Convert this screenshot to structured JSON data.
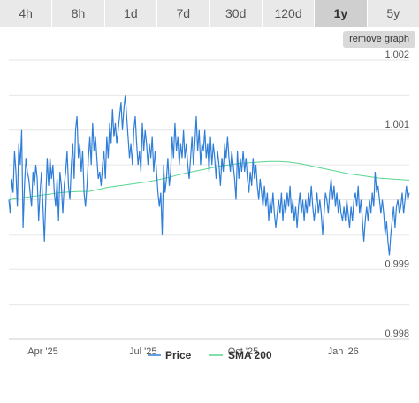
{
  "range_tabs": [
    {
      "label": "4h",
      "active": false
    },
    {
      "label": "8h",
      "active": false
    },
    {
      "label": "1d",
      "active": false
    },
    {
      "label": "7d",
      "active": false
    },
    {
      "label": "30d",
      "active": false
    },
    {
      "label": "120d",
      "active": false
    },
    {
      "label": "1y",
      "active": true
    },
    {
      "label": "5y",
      "active": false
    }
  ],
  "remove_graph_label": "remove graph",
  "colors": {
    "price_line": "#2f7ed8",
    "sma_line": "#58d68d",
    "grid": "#e6e6e6",
    "axis": "#cccccc",
    "tab_bg": "#e9e9e9",
    "tab_active_bg": "#cfcfcf"
  },
  "chart_data": {
    "type": "line",
    "x_tick_labels": [
      "Apr '25",
      "Jul '25",
      "Oct '25",
      "Jan '26"
    ],
    "y_tick_labels": [
      "0.998",
      "0.999",
      "1.001",
      "1.002"
    ],
    "ylim": [
      0.998,
      1.002
    ],
    "grid": true,
    "legend_position": "bottom-center",
    "series": [
      {
        "name": "Price",
        "values": [
          1.0,
          0.9998,
          1.0003,
          1.0001,
          1.0007,
          1.0004,
          0.9999,
          1.0008,
          1.0005,
          1.001,
          0.9996,
          1.0002,
          1.0006,
          1.0004,
          1.0003,
          1.0001,
          0.9999,
          1.0004,
          1.0002,
          1.0005,
          1.0003,
          0.9997,
          1.0001,
          1.0004,
          0.9999,
          0.9994,
          1.0,
          1.0006,
          1.0002,
          1.0006,
          1.0003,
          1.0005,
          1.0001,
          0.9999,
          1.0003,
          0.9997,
          1.0004,
          1.0002,
          0.9998,
          1.0002,
          1.0004,
          1.0007,
          1.0002,
          1.0,
          1.0005,
          1.0008,
          1.0003,
          1.001,
          1.0012,
          1.0006,
          1.0008,
          1.0004,
          1.0007,
          1.0001,
          0.9999,
          1.0002,
          1.0006,
          1.0009,
          1.0005,
          1.0011,
          1.0007,
          1.0009,
          1.0006,
          1.0003,
          1.0004,
          1.0002,
          1.0005,
          1.0007,
          1.0003,
          1.0009,
          1.0006,
          1.0011,
          1.0008,
          1.0013,
          1.0009,
          1.0011,
          1.0008,
          1.001,
          1.0012,
          1.0014,
          1.001,
          1.0013,
          1.0015,
          1.0012,
          1.0009,
          1.0006,
          1.0008,
          1.0005,
          1.001,
          1.0012,
          1.0008,
          1.0005,
          1.0007,
          1.0004,
          1.0011,
          1.0007,
          1.001,
          1.0008,
          1.0005,
          1.0008,
          1.0006,
          1.0009,
          1.0004,
          1.0007,
          1.0004,
          1.0001,
          0.9999,
          1.0001,
          0.9995,
          1.0005,
          1.0001,
          1.0003,
          1.0006,
          1.0002,
          1.0004,
          1.0009,
          1.0006,
          1.0011,
          1.0007,
          1.0009,
          1.0005,
          1.0008,
          1.0006,
          1.001,
          1.0006,
          1.0008,
          1.0005,
          1.0003,
          1.0006,
          1.0009,
          1.0005,
          1.0008,
          1.0012,
          1.0007,
          1.001,
          1.0005,
          1.0008,
          1.0007,
          1.001,
          1.0006,
          1.0008,
          1.0004,
          1.0009,
          1.0005,
          1.0008,
          1.0006,
          1.0003,
          1.0007,
          1.0005,
          1.0002,
          1.0006,
          1.0004,
          1.0008,
          1.0006,
          1.0009,
          1.0006,
          1.0004,
          1.0007,
          1.0005,
          1.0003,
          1.0,
          1.0007,
          1.0003,
          1.0006,
          1.0004,
          1.0007,
          1.0004,
          1.0006,
          1.0003,
          1.0001,
          1.0004,
          1.0002,
          1.0006,
          1.0003,
          1.0005,
          1.0002,
          1.0,
          1.0003,
          1.0001,
          0.9999,
          1.0002,
          0.9999,
          1.0001,
          0.9997,
          1.0,
          0.9998,
          1.0001,
          0.9998,
          0.9996,
          0.9998,
          1.0,
          0.9998,
          1.0001,
          0.9997,
          1.0,
          0.9998,
          1.0001,
          0.9999,
          1.0002,
          0.9998,
          1.0,
          0.9997,
          0.9999,
          0.9996,
          0.9999,
          1.0001,
          0.9998,
          1.0,
          0.9997,
          1.0,
          0.9998,
          1.0001,
          0.9999,
          1.0002,
          0.9999,
          0.9997,
          0.9999,
          1.0001,
          0.9998,
          1.0,
          0.9998,
          0.9995,
          0.9998,
          1.0001,
          1.0,
          0.9998,
          1.0001,
          1.0003,
          1.0,
          1.0002,
          0.9999,
          1.0001,
          0.9998,
          1.0,
          0.9998,
          0.9997,
          0.9999,
          0.9997,
          1.0,
          0.9998,
          0.9996,
          0.9999,
          0.9997,
          1.0,
          1.0001,
          0.9999,
          1.0002,
          0.9998,
          1.0,
          0.9997,
          0.9994,
          0.9997,
          0.9999,
          0.9997,
          1.0,
          0.9998,
          1.0001,
          0.9999,
          1.0004,
          1.0001,
          1.0002,
          1.0,
          0.9998,
          1.0,
          0.9998,
          0.9995,
          0.9997,
          0.9994,
          0.9992,
          0.9995,
          0.9997,
          0.9999,
          0.9996,
          0.9999,
          1.0,
          0.9998,
          0.9999,
          1.0001,
          0.9998,
          1.0,
          1.0002,
          1.0,
          1.0001
        ]
      },
      {
        "name": "SMA 200",
        "values": [
          1.0,
          1.00002,
          1.00004,
          1.00006,
          1.00008,
          1.0001,
          1.00011,
          1.00012,
          1.00012,
          1.00015,
          1.00018,
          1.0002,
          1.00022,
          1.00024,
          1.00026,
          1.00029,
          1.00032,
          1.00036,
          1.00039,
          1.00042,
          1.00045,
          1.00048,
          1.0005,
          1.00052,
          1.00053,
          1.00054,
          1.00055,
          1.00055,
          1.00054,
          1.00052,
          1.00049,
          1.00046,
          1.00043,
          1.0004,
          1.00037,
          1.00035,
          1.00033,
          1.00031,
          1.0003,
          1.00029,
          1.00028
        ]
      }
    ]
  }
}
